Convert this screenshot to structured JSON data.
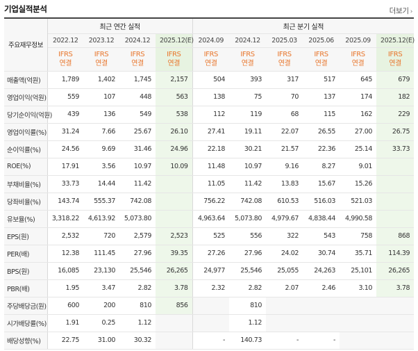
{
  "title": "기업실적분석",
  "more_label": "더보기",
  "table": {
    "row_header_label": "주요재무정보",
    "annual_group_label": "최근 연간 실적",
    "quarter_group_label": "최근 분기 실적",
    "periods": [
      "2022.12",
      "2023.12",
      "2024.12",
      "2025.12(E)",
      "2024.09",
      "2024.12",
      "2025.03",
      "2025.06",
      "2025.09",
      "2025.12(E)"
    ],
    "basis": [
      "IFRS\n연결",
      "IFRS\n연결",
      "IFRS\n연결",
      "IFRS\n연결",
      "IFRS\n연결",
      "IFRS\n연결",
      "IFRS\n연결",
      "IFRS\n연결",
      "IFRS\n연결",
      "IFRS\n연결"
    ],
    "rows": [
      {
        "label": "매출액(억원)",
        "values": [
          "1,789",
          "1,402",
          "1,745",
          "2,157",
          "504",
          "393",
          "317",
          "517",
          "645",
          "679"
        ]
      },
      {
        "label": "영업이익(억원)",
        "values": [
          "559",
          "107",
          "448",
          "563",
          "138",
          "75",
          "70",
          "137",
          "174",
          "182"
        ]
      },
      {
        "label": "당기순이익(억원)",
        "values": [
          "439",
          "136",
          "549",
          "538",
          "112",
          "119",
          "68",
          "115",
          "162",
          "229"
        ]
      },
      {
        "label": "영업이익률(%)",
        "values": [
          "31.24",
          "7.66",
          "25.67",
          "26.10",
          "27.41",
          "19.11",
          "22.07",
          "26.55",
          "27.00",
          "26.75"
        ]
      },
      {
        "label": "순이익률(%)",
        "values": [
          "24.56",
          "9.69",
          "31.46",
          "24.96",
          "22.18",
          "30.21",
          "21.57",
          "22.36",
          "25.14",
          "33.73"
        ]
      },
      {
        "label": "ROE(%)",
        "values": [
          "17.91",
          "3.56",
          "10.97",
          "10.09",
          "11.48",
          "10.97",
          "9.16",
          "8.27",
          "9.01",
          ""
        ]
      },
      {
        "label": "부채비율(%)",
        "values": [
          "33.73",
          "14.44",
          "11.42",
          "",
          "11.05",
          "11.42",
          "13.83",
          "15.67",
          "15.26",
          ""
        ]
      },
      {
        "label": "당좌비율(%)",
        "values": [
          "143.74",
          "555.37",
          "742.08",
          "",
          "756.22",
          "742.08",
          "610.53",
          "516.03",
          "521.03",
          ""
        ]
      },
      {
        "label": "유보율(%)",
        "values": [
          "3,318.22",
          "4,613.92",
          "5,073.80",
          "",
          "4,963.64",
          "5,073.80",
          "4,979.67",
          "4,838.44",
          "4,990.58",
          ""
        ]
      },
      {
        "label": "EPS(원)",
        "values": [
          "2,532",
          "720",
          "2,579",
          "2,523",
          "525",
          "556",
          "322",
          "543",
          "758",
          "868"
        ]
      },
      {
        "label": "PER(배)",
        "values": [
          "12.38",
          "111.45",
          "27.96",
          "39.35",
          "27.26",
          "27.96",
          "24.02",
          "30.74",
          "35.71",
          "114.39"
        ]
      },
      {
        "label": "BPS(원)",
        "values": [
          "16,085",
          "23,130",
          "25,546",
          "26,265",
          "24,977",
          "25,546",
          "25,055",
          "24,263",
          "25,101",
          "26,265"
        ]
      },
      {
        "label": "PBR(배)",
        "values": [
          "1.95",
          "3.47",
          "2.82",
          "3.78",
          "2.32",
          "2.82",
          "2.07",
          "2.46",
          "3.10",
          "3.78"
        ]
      },
      {
        "label": "주당배당금(원)",
        "values": [
          "600",
          "200",
          "810",
          "856",
          "",
          "810",
          "",
          "",
          "",
          ""
        ]
      },
      {
        "label": "시가배당률(%)",
        "values": [
          "1.91",
          "0.25",
          "1.12",
          "",
          "",
          "1.12",
          "",
          "",
          "",
          ""
        ]
      },
      {
        "label": "배당성향(%)",
        "values": [
          "22.75",
          "31.00",
          "30.32",
          "",
          "-",
          "140.73",
          "-",
          "-",
          "",
          ""
        ]
      }
    ]
  },
  "colors": {
    "basis_text": "#e8762c",
    "estimate_bg": "#eef7ea",
    "label_bg": "#f7f7f7"
  }
}
